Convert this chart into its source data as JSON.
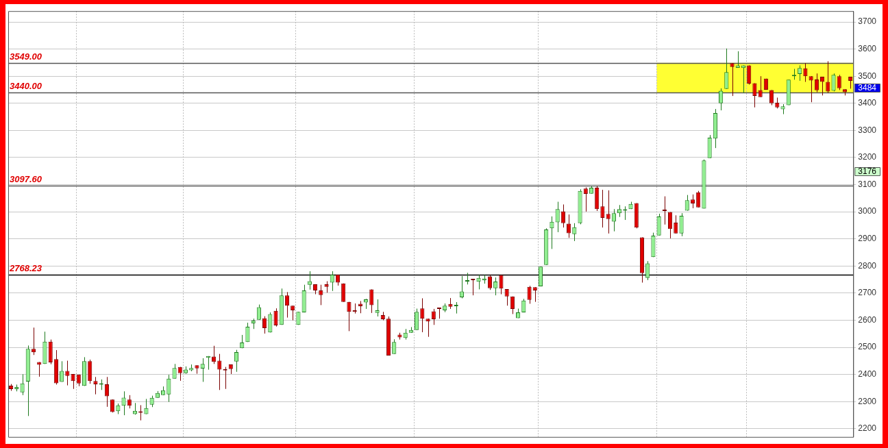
{
  "chart_data": {
    "type": "candlestick",
    "categories": [
      null,
      null,
      null,
      null,
      null,
      null,
      null,
      null,
      null,
      null,
      null,
      null,
      null,
      null,
      null,
      null,
      null,
      null,
      null,
      null,
      null,
      null,
      null,
      null,
      null,
      null,
      null,
      null,
      null,
      null,
      null,
      null,
      null,
      null,
      null,
      null,
      null,
      null,
      null,
      null,
      null,
      null,
      null,
      null,
      null,
      null,
      null,
      null,
      null,
      null,
      null,
      null,
      null,
      null,
      null,
      null,
      null,
      null,
      null,
      null,
      null,
      null,
      null,
      null,
      null,
      null,
      null,
      null,
      null,
      null,
      null,
      null,
      null,
      null,
      null,
      null,
      null,
      null,
      null,
      null,
      null,
      null,
      null,
      null,
      null,
      null,
      null,
      null,
      null,
      null,
      null,
      null,
      null,
      null,
      null,
      null,
      null,
      null,
      null,
      null,
      null,
      null,
      null,
      null,
      null,
      null,
      null,
      null,
      null,
      null,
      null,
      null,
      null,
      null,
      null,
      null,
      null,
      null,
      null,
      null,
      null,
      null,
      null,
      null,
      null,
      null,
      null,
      null,
      null,
      null,
      null,
      null,
      null,
      null,
      null,
      null,
      null,
      null,
      null,
      null,
      null,
      null,
      null,
      null,
      null,
      null,
      null,
      null,
      null,
      null
    ],
    "ohlc": [
      [
        2359,
        2365,
        2340,
        2346
      ],
      [
        2346,
        2363,
        2338,
        2354
      ],
      [
        2334,
        2401,
        2324,
        2367
      ],
      [
        2374,
        2507,
        2247,
        2495
      ],
      [
        2495,
        2573,
        2472,
        2482
      ],
      [
        2446,
        2446,
        2392,
        2436
      ],
      [
        2439,
        2558,
        2439,
        2521
      ],
      [
        2521,
        2529,
        2438,
        2445
      ],
      [
        2457,
        2490,
        2363,
        2368
      ],
      [
        2373,
        2449,
        2373,
        2413
      ],
      [
        2413,
        2451,
        2360,
        2395
      ],
      [
        2402,
        2402,
        2347,
        2376
      ],
      [
        2400,
        2400,
        2357,
        2367
      ],
      [
        2358,
        2464,
        2358,
        2449
      ],
      [
        2449,
        2455,
        2366,
        2376
      ],
      [
        2376,
        2391,
        2327,
        2364
      ],
      [
        2363,
        2382,
        2343,
        2364
      ],
      [
        2364,
        2391,
        2281,
        2320
      ],
      [
        2308,
        2308,
        2260,
        2262
      ],
      [
        2265,
        2293,
        2254,
        2286
      ],
      [
        2285,
        2338,
        2250,
        2315
      ],
      [
        2308,
        2324,
        2275,
        2285
      ],
      [
        2254,
        2295,
        2252,
        2266
      ],
      [
        2262,
        2287,
        2231,
        2259
      ],
      [
        2254,
        2310,
        2254,
        2276
      ],
      [
        2289,
        2322,
        2280,
        2314
      ],
      [
        2314,
        2339,
        2314,
        2332
      ],
      [
        2324,
        2356,
        2324,
        2342
      ],
      [
        2327,
        2399,
        2299,
        2385
      ],
      [
        2385,
        2439,
        2385,
        2424
      ],
      [
        2428,
        2428,
        2377,
        2405
      ],
      [
        2405,
        2430,
        2403,
        2418
      ],
      [
        2416,
        2437,
        2412,
        2424
      ],
      [
        2434,
        2434,
        2403,
        2423
      ],
      [
        2422,
        2460,
        2373,
        2439
      ],
      [
        2462,
        2468,
        2418,
        2468
      ],
      [
        2466,
        2506,
        2439,
        2447
      ],
      [
        2451,
        2476,
        2343,
        2418
      ],
      [
        2418,
        2428,
        2347,
        2415
      ],
      [
        2437,
        2437,
        2402,
        2420
      ],
      [
        2448,
        2491,
        2410,
        2483
      ],
      [
        2497,
        2546,
        2497,
        2518
      ],
      [
        2520,
        2591,
        2520,
        2576
      ],
      [
        2589,
        2606,
        2568,
        2599
      ],
      [
        2602,
        2658,
        2602,
        2648
      ],
      [
        2608,
        2615,
        2551,
        2571
      ],
      [
        2555,
        2629,
        2555,
        2623
      ],
      [
        2635,
        2644,
        2577,
        2581
      ],
      [
        2583,
        2717,
        2583,
        2692
      ],
      [
        2692,
        2704,
        2610,
        2654
      ],
      [
        2654,
        2654,
        2600,
        2637
      ],
      [
        2583,
        2631,
        2583,
        2631
      ],
      [
        2629,
        2731,
        2629,
        2710
      ],
      [
        2731,
        2781,
        2713,
        2744
      ],
      [
        2733,
        2733,
        2696,
        2710
      ],
      [
        2710,
        2731,
        2656,
        2693
      ],
      [
        2733,
        2744,
        2702,
        2723
      ],
      [
        2739,
        2781,
        2708,
        2768
      ],
      [
        2768,
        2768,
        2728,
        2739
      ],
      [
        2736,
        2736,
        2668,
        2668
      ],
      [
        2668,
        2668,
        2560,
        2631
      ],
      [
        2637,
        2662,
        2625,
        2631
      ],
      [
        2661,
        2671,
        2626,
        2652
      ],
      [
        2666,
        2679,
        2642,
        2677
      ],
      [
        2714,
        2714,
        2627,
        2656
      ],
      [
        2627,
        2677,
        2614,
        2637
      ],
      [
        2619,
        2631,
        2600,
        2604
      ],
      [
        2606,
        2614,
        2470,
        2470
      ],
      [
        2476,
        2530,
        2476,
        2520
      ],
      [
        2547,
        2554,
        2529,
        2537
      ],
      [
        2535,
        2568,
        2529,
        2554
      ],
      [
        2554,
        2575,
        2554,
        2564
      ],
      [
        2564,
        2643,
        2564,
        2631
      ],
      [
        2644,
        2681,
        2556,
        2606
      ],
      [
        2606,
        2606,
        2539,
        2596
      ],
      [
        2633,
        2642,
        2583,
        2604
      ],
      [
        2644,
        2644,
        2606,
        2642
      ],
      [
        2637,
        2662,
        2630,
        2654
      ],
      [
        2660,
        2682,
        2642,
        2650
      ],
      [
        2652,
        2667,
        2625,
        2654
      ],
      [
        2685,
        2763,
        2681,
        2706
      ],
      [
        2743,
        2775,
        2732,
        2745
      ],
      [
        2750,
        2750,
        2692,
        2748
      ],
      [
        2742,
        2767,
        2714,
        2756
      ],
      [
        2748,
        2767,
        2735,
        2754
      ],
      [
        2762,
        2767,
        2712,
        2718
      ],
      [
        2718,
        2758,
        2692,
        2743
      ],
      [
        2767,
        2767,
        2696,
        2717
      ],
      [
        2715,
        2715,
        2654,
        2688
      ],
      [
        2688,
        2688,
        2623,
        2642
      ],
      [
        2608,
        2643,
        2608,
        2629
      ],
      [
        2629,
        2679,
        2629,
        2673
      ],
      [
        2723,
        2727,
        2661,
        2675
      ],
      [
        2722,
        2722,
        2668,
        2710
      ],
      [
        2725,
        2798,
        2725,
        2798
      ],
      [
        2804,
        2939,
        2804,
        2935
      ],
      [
        2939,
        2983,
        2863,
        2963
      ],
      [
        2961,
        3037,
        2925,
        3010
      ],
      [
        3002,
        3027,
        2942,
        2958
      ],
      [
        2956,
        2990,
        2904,
        2921
      ],
      [
        2918,
        2958,
        2892,
        2943
      ],
      [
        2958,
        3083,
        2954,
        3077
      ],
      [
        3086,
        3090,
        3001,
        3066
      ],
      [
        3067,
        3095,
        3067,
        3089
      ],
      [
        3089,
        3095,
        3003,
        3010
      ],
      [
        3020,
        3081,
        2942,
        2978
      ],
      [
        2992,
        3079,
        2920,
        2973
      ],
      [
        2964,
        3010,
        2928,
        2995
      ],
      [
        2995,
        3025,
        2981,
        3010
      ],
      [
        3004,
        3020,
        2970,
        3006
      ],
      [
        3010,
        3037,
        3010,
        3029
      ],
      [
        3032,
        3032,
        2939,
        2942
      ],
      [
        2906,
        2906,
        2739,
        2774
      ],
      [
        2756,
        2818,
        2748,
        2810
      ],
      [
        2833,
        2923,
        2833,
        2912
      ],
      [
        2913,
        2993,
        2913,
        2983
      ],
      [
        3004,
        3057,
        2953,
        3003
      ],
      [
        2999,
        2999,
        2902,
        2937
      ],
      [
        2960,
        2987,
        2920,
        2920
      ],
      [
        2920,
        2995,
        2910,
        2985
      ],
      [
        3004,
        3062,
        3004,
        3043
      ],
      [
        3045,
        3064,
        3013,
        3031
      ],
      [
        3072,
        3077,
        3016,
        3016
      ],
      [
        3012,
        3193,
        3012,
        3189
      ],
      [
        3198,
        3283,
        3198,
        3273
      ],
      [
        3270,
        3379,
        3235,
        3364
      ],
      [
        3400,
        3455,
        3374,
        3446
      ],
      [
        3453,
        3602,
        3453,
        3515
      ],
      [
        3548,
        3548,
        3427,
        3534
      ],
      [
        3531,
        3592,
        3531,
        3540
      ],
      [
        3530,
        3540,
        3438,
        3540
      ],
      [
        3540,
        3540,
        3469,
        3473
      ],
      [
        3474,
        3474,
        3385,
        3427
      ],
      [
        3449,
        3500,
        3423,
        3423
      ],
      [
        3491,
        3491,
        3450,
        3450
      ],
      [
        3449,
        3449,
        3393,
        3400
      ],
      [
        3402,
        3421,
        3381,
        3385
      ],
      [
        3378,
        3397,
        3360,
        3389
      ],
      [
        3393,
        3487,
        3393,
        3487
      ],
      [
        3500,
        3527,
        3487,
        3500
      ],
      [
        3508,
        3540,
        3483,
        3530
      ],
      [
        3529,
        3548,
        3479,
        3500
      ],
      [
        3500,
        3500,
        3404,
        3484
      ],
      [
        3488,
        3510,
        3441,
        3448
      ],
      [
        3498,
        3498,
        3429,
        3479
      ],
      [
        3479,
        3555,
        3438,
        3444
      ],
      [
        3446,
        3510,
        3444,
        3505
      ],
      [
        3500,
        3505,
        3449,
        3456
      ],
      [
        3452,
        3452,
        3429,
        3441
      ],
      [
        3498,
        3498,
        3454,
        3483
      ]
    ],
    "ylim": [
      2170,
      3740
    ],
    "yticks": [
      2200,
      2300,
      2400,
      2500,
      2600,
      2700,
      2800,
      2900,
      3000,
      3100,
      3200,
      3300,
      3400,
      3500,
      3600,
      3700
    ],
    "grid": "y",
    "tick_labels": "y",
    "legend": false,
    "ref_lines": [
      {
        "axis": "y",
        "value": 3549,
        "label": "3549.00",
        "color": "#555555"
      },
      {
        "axis": "y",
        "value": 3440,
        "label": "3440.00",
        "color": "#555555"
      },
      {
        "axis": "y",
        "value": 3097.6,
        "label": "3097.60",
        "color": "#555555"
      },
      {
        "axis": "y",
        "value": 2768.23,
        "label": "2768.23",
        "color": "#000000"
      }
    ],
    "bands": [
      {
        "axis": "y",
        "from": 3440,
        "to": 3549,
        "color": "#ffff33"
      }
    ],
    "annotations": [
      "3484",
      "3176"
    ]
  }
}
